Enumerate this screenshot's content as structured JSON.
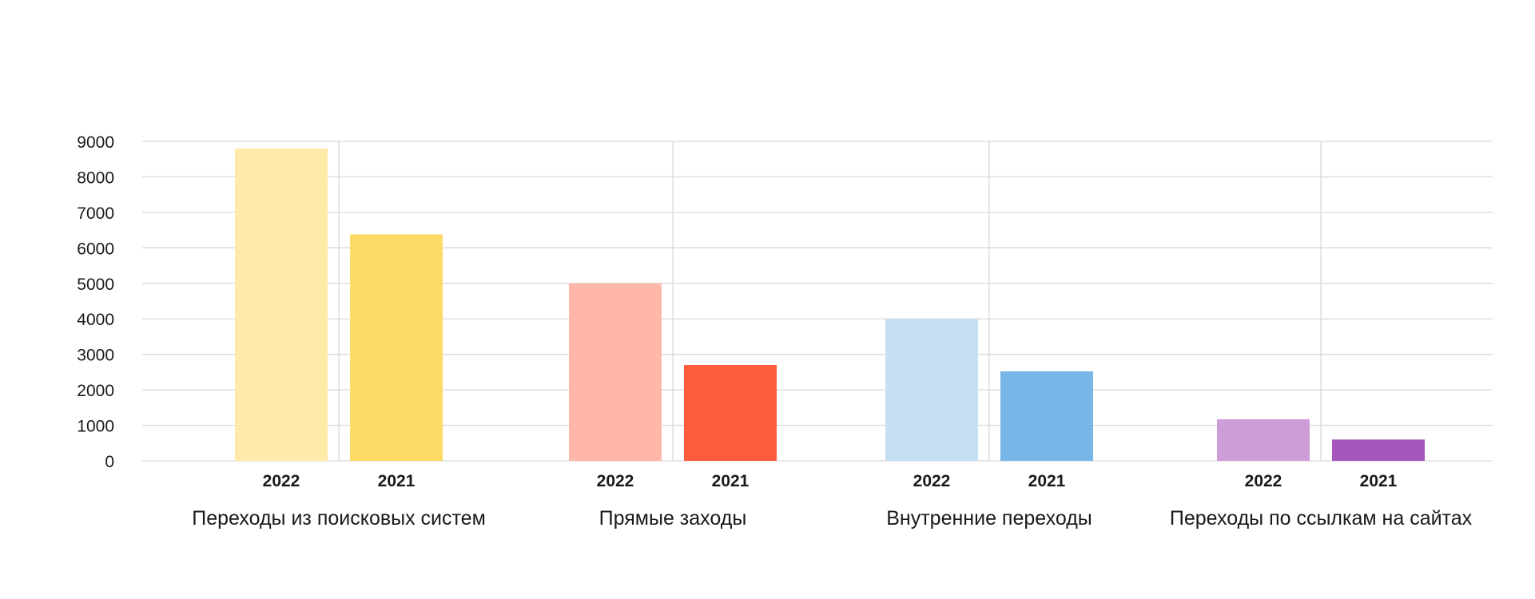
{
  "chart_data": {
    "type": "bar",
    "title": "",
    "xlabel": "",
    "ylabel": "",
    "ylim": [
      0,
      9000
    ],
    "yticks": [
      0,
      1000,
      2000,
      3000,
      4000,
      5000,
      6000,
      7000,
      8000,
      9000
    ],
    "grid": true,
    "legend": "none",
    "groups": [
      {
        "label": "Переходы из поисковых систем",
        "bars": [
          {
            "category": "2022",
            "value": 8800,
            "color": "#FFEAAA"
          },
          {
            "category": "2021",
            "value": 6380,
            "color": "#FEDA66"
          }
        ]
      },
      {
        "label": "Прямые заходы",
        "bars": [
          {
            "category": "2022",
            "value": 5000,
            "color": "#FFB7AA"
          },
          {
            "category": "2021",
            "value": 2700,
            "color": "#FF5B3F"
          }
        ]
      },
      {
        "label": "Внутренние переходы",
        "bars": [
          {
            "category": "2022",
            "value": 4000,
            "color": "#C5E0F3"
          },
          {
            "category": "2021",
            "value": 2520,
            "color": "#77B6E6"
          }
        ]
      },
      {
        "label": "Переходы по ссылкам на сайтах",
        "bars": [
          {
            "category": "2022",
            "value": 1170,
            "color": "#CE9DD8"
          },
          {
            "category": "2021",
            "value": 600,
            "color": "#A556BB"
          }
        ]
      }
    ]
  }
}
